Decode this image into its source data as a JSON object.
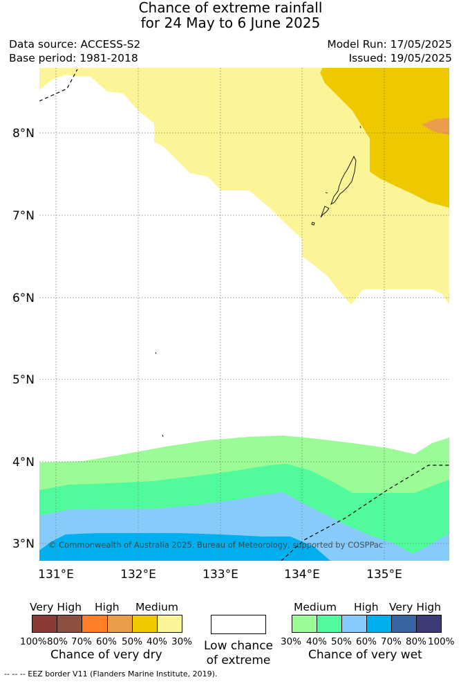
{
  "title_line1": "Chance of extreme rainfall",
  "title_line2": "for 24 May to 6 June 2025",
  "data_source": "Data source: ACCESS-S2",
  "base_period": "Base period: 1981-2018",
  "model_run": "Model Run: 17/05/2025",
  "issued": "Issued: 19/05/2025",
  "copyright": "© Commonwealth of Australia 2025, Bureau of Meteorology, supported by COSPPac",
  "axes": {
    "lon_ticks": [
      "131°E",
      "132°E",
      "133°E",
      "134°E",
      "135°E"
    ],
    "lat_ticks": [
      "8°N",
      "7°N",
      "6°N",
      "5°N",
      "4°N",
      "3°N"
    ]
  },
  "legend": {
    "dry": {
      "labels": [
        "Very High",
        "High",
        "Medium"
      ],
      "percents": [
        "100%",
        "80%",
        "70%",
        "60%",
        "50%",
        "40%",
        "30%"
      ],
      "colors": [
        "#8b3a36",
        "#8c5040",
        "#ff7f27",
        "#ec9c4d",
        "#eec900",
        "#fbf597"
      ],
      "caption": "Chance of very dry"
    },
    "low": {
      "caption_line1": "Low chance",
      "caption_line2": "of extreme",
      "color": "#ffffff"
    },
    "wet": {
      "labels": [
        "Medium",
        "High",
        "Very High"
      ],
      "percents": [
        "30%",
        "40%",
        "50%",
        "60%",
        "70%",
        "80%",
        "100%"
      ],
      "colors": [
        "#9bfb97",
        "#51fb9c",
        "#87cbfa",
        "#00b0ee",
        "#3965a2",
        "#3b3c77"
      ],
      "caption": "Chance of very wet"
    }
  },
  "eez_note": "--  --  -- EEZ border V11 (Flanders Marine Institute, 2019)."
}
